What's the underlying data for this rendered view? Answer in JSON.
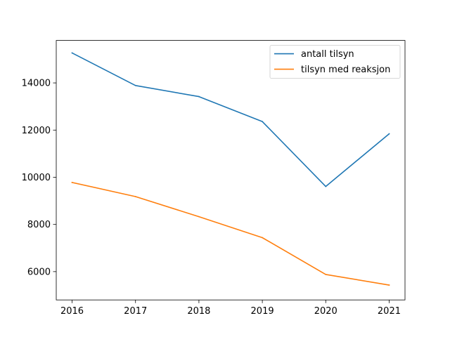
{
  "chart_data": {
    "type": "line",
    "title": "",
    "xlabel": "",
    "ylabel": "",
    "x": [
      2016,
      2017,
      2018,
      2019,
      2020,
      2021
    ],
    "x_tick_labels": [
      "2016",
      "2017",
      "2018",
      "2019",
      "2020",
      "2021"
    ],
    "y_ticks": [
      6000,
      8000,
      10000,
      12000,
      14000
    ],
    "y_tick_labels": [
      "6000",
      "8000",
      "10000",
      "12000",
      "14000"
    ],
    "xlim": [
      2015.75,
      2021.25
    ],
    "ylim": [
      4800,
      15800
    ],
    "grid": false,
    "legend_position": "top-right",
    "series": [
      {
        "name": "antall tilsyn",
        "color": "#1f77b4",
        "values": [
          15270,
          13890,
          13420,
          12360,
          9610,
          11840
        ]
      },
      {
        "name": "tilsyn med reaksjon",
        "color": "#ff7f0e",
        "values": [
          9780,
          9180,
          8330,
          7440,
          5880,
          5430
        ]
      }
    ]
  }
}
